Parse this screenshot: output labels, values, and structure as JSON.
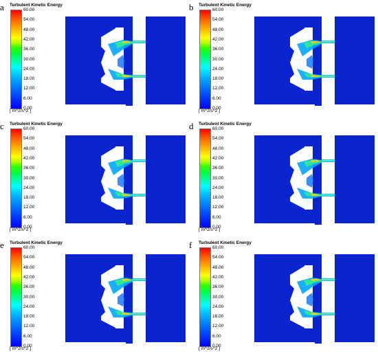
{
  "figure": {
    "colorbar": {
      "title": "Turbulent Kinetic Energy",
      "unit": "[ m^2/s^2 ]",
      "ticks": [
        "60.00",
        "54.00",
        "48.00",
        "42.00",
        "36.00",
        "30.00",
        "24.00",
        "18.00",
        "12.00",
        "6.00",
        "0.00"
      ]
    },
    "panels": [
      {
        "letter": "a"
      },
      {
        "letter": "b"
      },
      {
        "letter": "c"
      },
      {
        "letter": "d"
      },
      {
        "letter": "e"
      },
      {
        "letter": "f"
      }
    ],
    "colors": {
      "background_field": "#0a24d0",
      "jet_core": "#00e0a0",
      "hot_spot": "#ffcc00"
    }
  }
}
